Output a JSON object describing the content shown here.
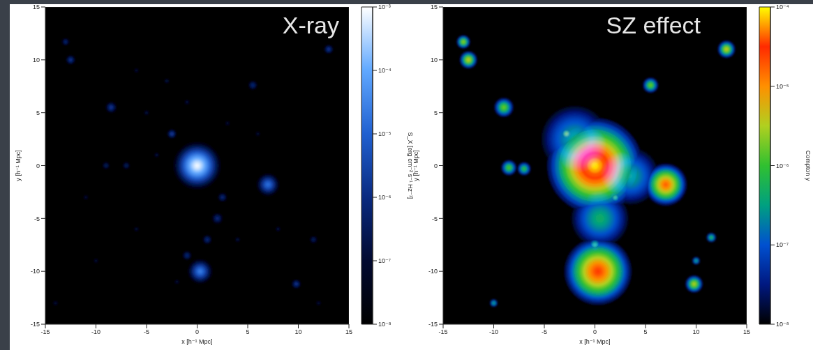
{
  "chart_data": [
    {
      "type": "heatmap",
      "title": "X-ray",
      "x_label": "x [h⁻¹ Mpc]",
      "y_label": "y [h⁻¹ Mpc]",
      "xlim": [
        -15,
        15
      ],
      "ylim": [
        -15,
        15
      ],
      "xticks": [
        -15,
        -10,
        -5,
        0,
        5,
        10,
        15
      ],
      "yticks": [
        -15,
        -10,
        -5,
        0,
        5,
        10,
        15
      ],
      "colorbar": {
        "label": "S_X [erg cm⁻² s⁻¹ Hz⁻¹]",
        "log": true,
        "range": [
          1e-08,
          0.001
        ],
        "ticks": [
          {
            "value": 1e-08,
            "label": "10⁻⁸"
          },
          {
            "value": 1e-07,
            "label": "10⁻⁷"
          },
          {
            "value": 1e-06,
            "label": "10⁻⁶"
          },
          {
            "value": 1e-05,
            "label": "10⁻⁵"
          },
          {
            "value": 0.0001,
            "label": "10⁻⁴"
          },
          {
            "value": 0.001,
            "label": "10⁻³"
          }
        ],
        "colors": [
          "#000000",
          "#020a30",
          "#0a2a80",
          "#2060d0",
          "#60a8ff",
          "#ffffff"
        ]
      },
      "sources": [
        {
          "x": 0,
          "y": 0,
          "radius": 2.5,
          "peak": 0.001
        },
        {
          "x": 7,
          "y": -1.8,
          "radius": 1.2,
          "peak": 2e-05
        },
        {
          "x": 0.3,
          "y": -10,
          "radius": 1.3,
          "peak": 3e-05
        },
        {
          "x": -2.5,
          "y": 3,
          "radius": 0.5,
          "peak": 3e-06
        },
        {
          "x": -8.5,
          "y": 5.5,
          "radius": 0.6,
          "peak": 2e-06
        },
        {
          "x": -12.5,
          "y": 10,
          "radius": 0.5,
          "peak": 2e-06
        },
        {
          "x": -13,
          "y": 11.7,
          "radius": 0.4,
          "peak": 1e-06
        },
        {
          "x": 13,
          "y": 11,
          "radius": 0.5,
          "peak": 2e-06
        },
        {
          "x": 5.5,
          "y": 7.6,
          "radius": 0.5,
          "peak": 1e-06
        },
        {
          "x": 9.8,
          "y": -11.2,
          "radius": 0.5,
          "peak": 2e-06
        },
        {
          "x": 2,
          "y": -5,
          "radius": 0.6,
          "peak": 1e-06
        },
        {
          "x": 1,
          "y": -7,
          "radius": 0.5,
          "peak": 1e-06
        },
        {
          "x": -1,
          "y": -8.5,
          "radius": 0.5,
          "peak": 1e-06
        },
        {
          "x": 2.5,
          "y": -3,
          "radius": 0.5,
          "peak": 1e-06
        },
        {
          "x": 11.5,
          "y": -7,
          "radius": 0.4,
          "peak": 5e-07
        },
        {
          "x": -9,
          "y": 0,
          "radius": 0.4,
          "peak": 5e-07
        },
        {
          "x": -7,
          "y": 0,
          "radius": 0.4,
          "peak": 5e-07
        },
        {
          "x": -5,
          "y": 5,
          "radius": 0.25,
          "peak": 3e-07
        },
        {
          "x": -3,
          "y": 8,
          "radius": 0.25,
          "peak": 3e-07
        },
        {
          "x": -6,
          "y": 9,
          "radius": 0.25,
          "peak": 2e-07
        },
        {
          "x": -1,
          "y": 6,
          "radius": 0.25,
          "peak": 3e-07
        },
        {
          "x": 3,
          "y": 4,
          "radius": 0.25,
          "peak": 2e-07
        },
        {
          "x": -4,
          "y": 1,
          "radius": 0.25,
          "peak": 3e-07
        },
        {
          "x": 4,
          "y": -7,
          "radius": 0.25,
          "peak": 3e-07
        },
        {
          "x": -2,
          "y": -11,
          "radius": 0.25,
          "peak": 2e-07
        },
        {
          "x": 6,
          "y": 3,
          "radius": 0.25,
          "peak": 2e-07
        },
        {
          "x": -11,
          "y": -3,
          "radius": 0.25,
          "peak": 2e-07
        },
        {
          "x": 8,
          "y": -6,
          "radius": 0.25,
          "peak": 3e-07
        },
        {
          "x": -6,
          "y": -6,
          "radius": 0.25,
          "peak": 2e-07
        },
        {
          "x": 12,
          "y": -13,
          "radius": 0.25,
          "peak": 2e-07
        },
        {
          "x": -14,
          "y": -13,
          "radius": 0.25,
          "peak": 2e-07
        },
        {
          "x": -10,
          "y": -9,
          "radius": 0.25,
          "peak": 2e-07
        }
      ]
    },
    {
      "type": "heatmap",
      "title": "SZ effect",
      "x_label": "x [h⁻¹ Mpc]",
      "y_label": "y [h⁻¹ Mpc]",
      "xlim": [
        -15,
        15
      ],
      "ylim": [
        -15,
        15
      ],
      "xticks": [
        -15,
        -10,
        -5,
        0,
        5,
        10,
        15
      ],
      "yticks": [
        -15,
        -10,
        -5,
        0,
        5,
        10,
        15
      ],
      "colorbar": {
        "label": "Compton y",
        "log": true,
        "range": [
          1e-08,
          0.0001
        ],
        "ticks": [
          {
            "value": 1e-08,
            "label": "10⁻⁸"
          },
          {
            "value": 1e-07,
            "label": "10⁻⁷"
          },
          {
            "value": 1e-06,
            "label": "10⁻⁶"
          },
          {
            "value": 1e-05,
            "label": "10⁻⁵"
          },
          {
            "value": 0.0001,
            "label": "10⁻⁴"
          }
        ],
        "colors": [
          "#000000",
          "#001880",
          "#0050d0",
          "#00a080",
          "#30c030",
          "#b0d020",
          "#ff9000",
          "#ff2a00",
          "#ffff00"
        ]
      },
      "sources": [
        {
          "x": 0,
          "y": 0,
          "radius": 5,
          "peak": 0.0001
        },
        {
          "x": 0.3,
          "y": -10,
          "radius": 3.5,
          "peak": 3e-05
        },
        {
          "x": 7,
          "y": -1.8,
          "radius": 2.2,
          "peak": 2e-05
        },
        {
          "x": 0.5,
          "y": -5,
          "radius": 3,
          "peak": 5e-07
        },
        {
          "x": 3.5,
          "y": -1,
          "radius": 3,
          "peak": 4e-07
        },
        {
          "x": -2,
          "y": 2.5,
          "radius": 3.5,
          "peak": 4e-07
        },
        {
          "x": -13,
          "y": 11.7,
          "radius": 0.7,
          "peak": 3e-06
        },
        {
          "x": -12.5,
          "y": 10,
          "radius": 0.9,
          "peak": 5e-06
        },
        {
          "x": 13,
          "y": 11,
          "radius": 0.9,
          "peak": 5e-06
        },
        {
          "x": -9,
          "y": 5.5,
          "radius": 1,
          "peak": 2e-06
        },
        {
          "x": 5.5,
          "y": 7.6,
          "radius": 0.8,
          "peak": 2e-06
        },
        {
          "x": -8.5,
          "y": -0.2,
          "radius": 0.8,
          "peak": 1.5e-06
        },
        {
          "x": -7,
          "y": -0.3,
          "radius": 0.7,
          "peak": 1e-06
        },
        {
          "x": 9.8,
          "y": -11.2,
          "radius": 0.9,
          "peak": 4e-06
        },
        {
          "x": 11.5,
          "y": -6.8,
          "radius": 0.5,
          "peak": 8e-07
        },
        {
          "x": -2.8,
          "y": 3,
          "radius": 0.6,
          "peak": 4e-06
        },
        {
          "x": 2,
          "y": -3,
          "radius": 0.5,
          "peak": 2e-06
        },
        {
          "x": -10,
          "y": -13,
          "radius": 0.4,
          "peak": 5e-07
        },
        {
          "x": 10,
          "y": -9,
          "radius": 0.4,
          "peak": 5e-07
        },
        {
          "x": 0,
          "y": -7.5,
          "radius": 0.6,
          "peak": 1.5e-06
        }
      ]
    }
  ]
}
